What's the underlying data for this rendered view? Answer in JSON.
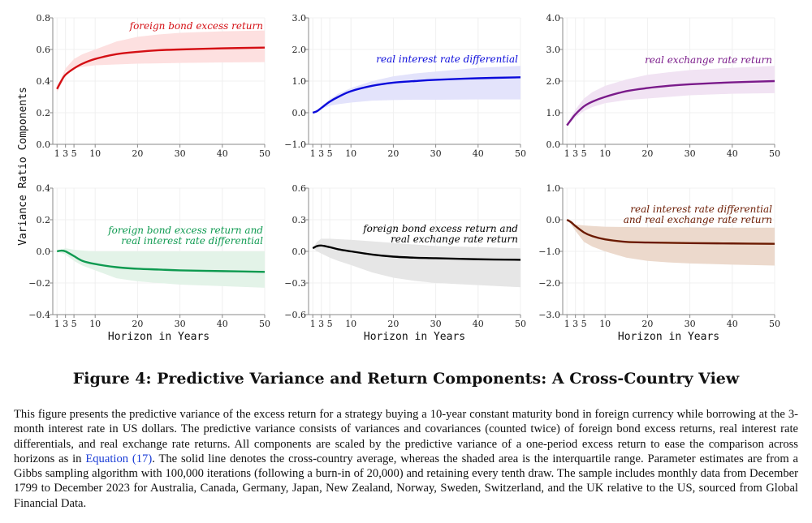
{
  "figure": {
    "title": "Figure 4: Predictive Variance and Return Components: A Cross-Country View",
    "caption_before": "This figure presents the predictive variance of the excess return for a strategy buying a 10-year constant maturity bond in foreign currency while borrowing at the 3-month interest rate in US dollars. The predictive variance consists of variances and covariances (counted twice) of foreign bond excess returns, real interest rate differentials, and real exchange rate returns. All components are scaled by the predictive variance of a one-period excess return to ease the comparison across horizons as in ",
    "caption_link": "Equation (17)",
    "caption_after": ". The solid line denotes the cross-country average, whereas the shaded area is the interquartile range. Parameter estimates are from a Gibbs sampling algorithm with 100,000 iterations (following a burn-in of 20,000) and retaining every tenth draw. The sample includes monthly data from December 1799 to December 2023 for Australia, Canada, Germany, Japan, New Zealand, Norway, Sweden, Switzerland, and the UK relative to the US, sourced from Global Financial Data.",
    "ylabel": "Variance Ratio Components",
    "xlabel": "Horizon in Years"
  },
  "chart_data": [
    {
      "type": "line",
      "series_label": "foreign bond excess return",
      "color": "#d40f14",
      "band_color": "#fde0e0",
      "xlim": [
        0,
        50
      ],
      "ylim": [
        0,
        0.8
      ],
      "xticks": [
        1,
        3,
        5,
        10,
        20,
        30,
        40,
        50
      ],
      "yticks": [
        "0.0",
        "0.2",
        "0.4",
        "0.6",
        "0.8"
      ],
      "grid": true,
      "x": [
        1,
        2,
        3,
        5,
        7,
        10,
        15,
        20,
        25,
        30,
        40,
        50
      ],
      "mean": [
        0.35,
        0.4,
        0.44,
        0.48,
        0.51,
        0.54,
        0.57,
        0.585,
        0.595,
        0.6,
        0.607,
        0.612
      ],
      "lower": [
        0.33,
        0.38,
        0.46,
        0.48,
        0.49,
        0.5,
        0.505,
        0.51,
        0.512,
        0.515,
        0.518,
        0.52
      ],
      "upper": [
        0.37,
        0.42,
        0.48,
        0.54,
        0.57,
        0.6,
        0.65,
        0.68,
        0.695,
        0.705,
        0.715,
        0.72
      ]
    },
    {
      "type": "line",
      "series_label": "real interest rate differential",
      "color": "#0a0adb",
      "band_color": "#e3e3fb",
      "xlim": [
        0,
        50
      ],
      "ylim": [
        -1,
        3
      ],
      "xticks": [
        1,
        3,
        5,
        10,
        20,
        30,
        40,
        50
      ],
      "yticks": [
        "−1.0",
        "0.0",
        "1.0",
        "2.0",
        "3.0"
      ],
      "grid": true,
      "x": [
        1,
        2,
        3,
        5,
        7,
        10,
        15,
        20,
        25,
        30,
        40,
        50
      ],
      "mean": [
        0.0,
        0.05,
        0.15,
        0.35,
        0.5,
        0.68,
        0.85,
        0.95,
        1.0,
        1.04,
        1.09,
        1.12
      ],
      "lower": [
        0.0,
        0.06,
        0.12,
        0.22,
        0.27,
        0.32,
        0.38,
        0.4,
        0.41,
        0.41,
        0.42,
        0.42
      ],
      "upper": [
        0.0,
        0.08,
        0.2,
        0.42,
        0.6,
        0.78,
        1.0,
        1.15,
        1.24,
        1.3,
        1.42,
        1.48
      ]
    },
    {
      "type": "line",
      "series_label": "real exchange rate return",
      "color": "#7a1a8a",
      "band_color": "#f1e3f3",
      "xlim": [
        0,
        50
      ],
      "ylim": [
        0,
        4
      ],
      "xticks": [
        1,
        3,
        5,
        10,
        20,
        30,
        40,
        50
      ],
      "yticks": [
        "0.0",
        "1.0",
        "2.0",
        "3.0",
        "4.0"
      ],
      "grid": true,
      "x": [
        1,
        2,
        3,
        5,
        7,
        10,
        15,
        20,
        25,
        30,
        40,
        50
      ],
      "mean": [
        0.6,
        0.78,
        0.95,
        1.2,
        1.35,
        1.5,
        1.68,
        1.78,
        1.85,
        1.9,
        1.96,
        2.0
      ],
      "lower": [
        0.58,
        0.72,
        0.85,
        1.05,
        1.18,
        1.3,
        1.4,
        1.45,
        1.5,
        1.55,
        1.6,
        1.62
      ],
      "upper": [
        0.65,
        0.88,
        1.1,
        1.45,
        1.65,
        1.85,
        2.05,
        2.2,
        2.28,
        2.35,
        2.42,
        2.48
      ]
    },
    {
      "type": "line",
      "series_label": "foreign bond excess return and\nreal interest rate differential",
      "color": "#0e9a50",
      "band_color": "#e3f3e8",
      "xlim": [
        0,
        50
      ],
      "ylim": [
        -0.4,
        0.4
      ],
      "xticks": [
        1,
        3,
        5,
        10,
        20,
        30,
        40,
        50
      ],
      "yticks": [
        "−0.4",
        "−0.2",
        "0.0",
        "0.2",
        "0.4"
      ],
      "grid": true,
      "x": [
        1,
        2,
        3,
        5,
        7,
        10,
        15,
        20,
        25,
        30,
        40,
        50
      ],
      "mean": [
        0.0,
        0.005,
        0.0,
        -0.03,
        -0.06,
        -0.08,
        -0.1,
        -0.11,
        -0.115,
        -0.12,
        -0.125,
        -0.13
      ],
      "lower": [
        0.0,
        -0.01,
        -0.02,
        -0.06,
        -0.09,
        -0.12,
        -0.17,
        -0.19,
        -0.2,
        -0.21,
        -0.22,
        -0.23
      ],
      "upper": [
        0.0,
        0.01,
        0.02,
        0.01,
        0.005,
        0.0,
        0.0,
        0.0,
        0.0,
        0.0,
        0.0,
        0.0
      ]
    },
    {
      "type": "line",
      "series_label": "foreign bond excess return and\nreal exchange rate return",
      "color": "#000000",
      "band_color": "#e6e6e6",
      "xlim": [
        0,
        50
      ],
      "ylim": [
        -0.6,
        0.6
      ],
      "xticks": [
        1,
        3,
        5,
        10,
        20,
        30,
        40,
        50
      ],
      "yticks": [
        "−0.6",
        "−0.3",
        "0.0",
        "0.3",
        "0.6"
      ],
      "grid": true,
      "x": [
        1,
        2,
        3,
        5,
        7,
        10,
        15,
        20,
        25,
        30,
        40,
        50
      ],
      "mean": [
        0.03,
        0.05,
        0.055,
        0.04,
        0.02,
        0.0,
        -0.03,
        -0.05,
        -0.06,
        -0.065,
        -0.075,
        -0.08
      ],
      "lower": [
        0.03,
        0.0,
        -0.02,
        -0.06,
        -0.09,
        -0.13,
        -0.2,
        -0.25,
        -0.28,
        -0.3,
        -0.32,
        -0.34
      ],
      "upper": [
        0.03,
        0.09,
        0.12,
        0.12,
        0.115,
        0.11,
        0.095,
        0.08,
        0.065,
        0.05,
        0.04,
        0.03
      ]
    },
    {
      "type": "line",
      "series_label": "real interest rate differential\nand real exchange rate return",
      "color": "#6b1a00",
      "band_color": "#ecd9cc",
      "xlim": [
        0,
        50
      ],
      "ylim": [
        -3,
        1
      ],
      "xticks": [
        1,
        3,
        5,
        10,
        20,
        30,
        40,
        50
      ],
      "yticks": [
        "−3.0",
        "−2.0",
        "−1.0",
        "0.0",
        "1.0"
      ],
      "grid": true,
      "x": [
        1,
        2,
        3,
        5,
        7,
        10,
        15,
        20,
        25,
        30,
        40,
        50
      ],
      "mean": [
        0.0,
        -0.08,
        -0.2,
        -0.4,
        -0.52,
        -0.62,
        -0.7,
        -0.72,
        -0.73,
        -0.74,
        -0.75,
        -0.76
      ],
      "lower": [
        0.0,
        -0.15,
        -0.35,
        -0.7,
        -0.85,
        -1.0,
        -1.2,
        -1.3,
        -1.35,
        -1.38,
        -1.42,
        -1.45
      ],
      "upper": [
        0.0,
        -0.08,
        -0.15,
        -0.18,
        -0.2,
        -0.22,
        -0.23,
        -0.24,
        -0.24,
        -0.24,
        -0.25,
        -0.25
      ]
    }
  ]
}
